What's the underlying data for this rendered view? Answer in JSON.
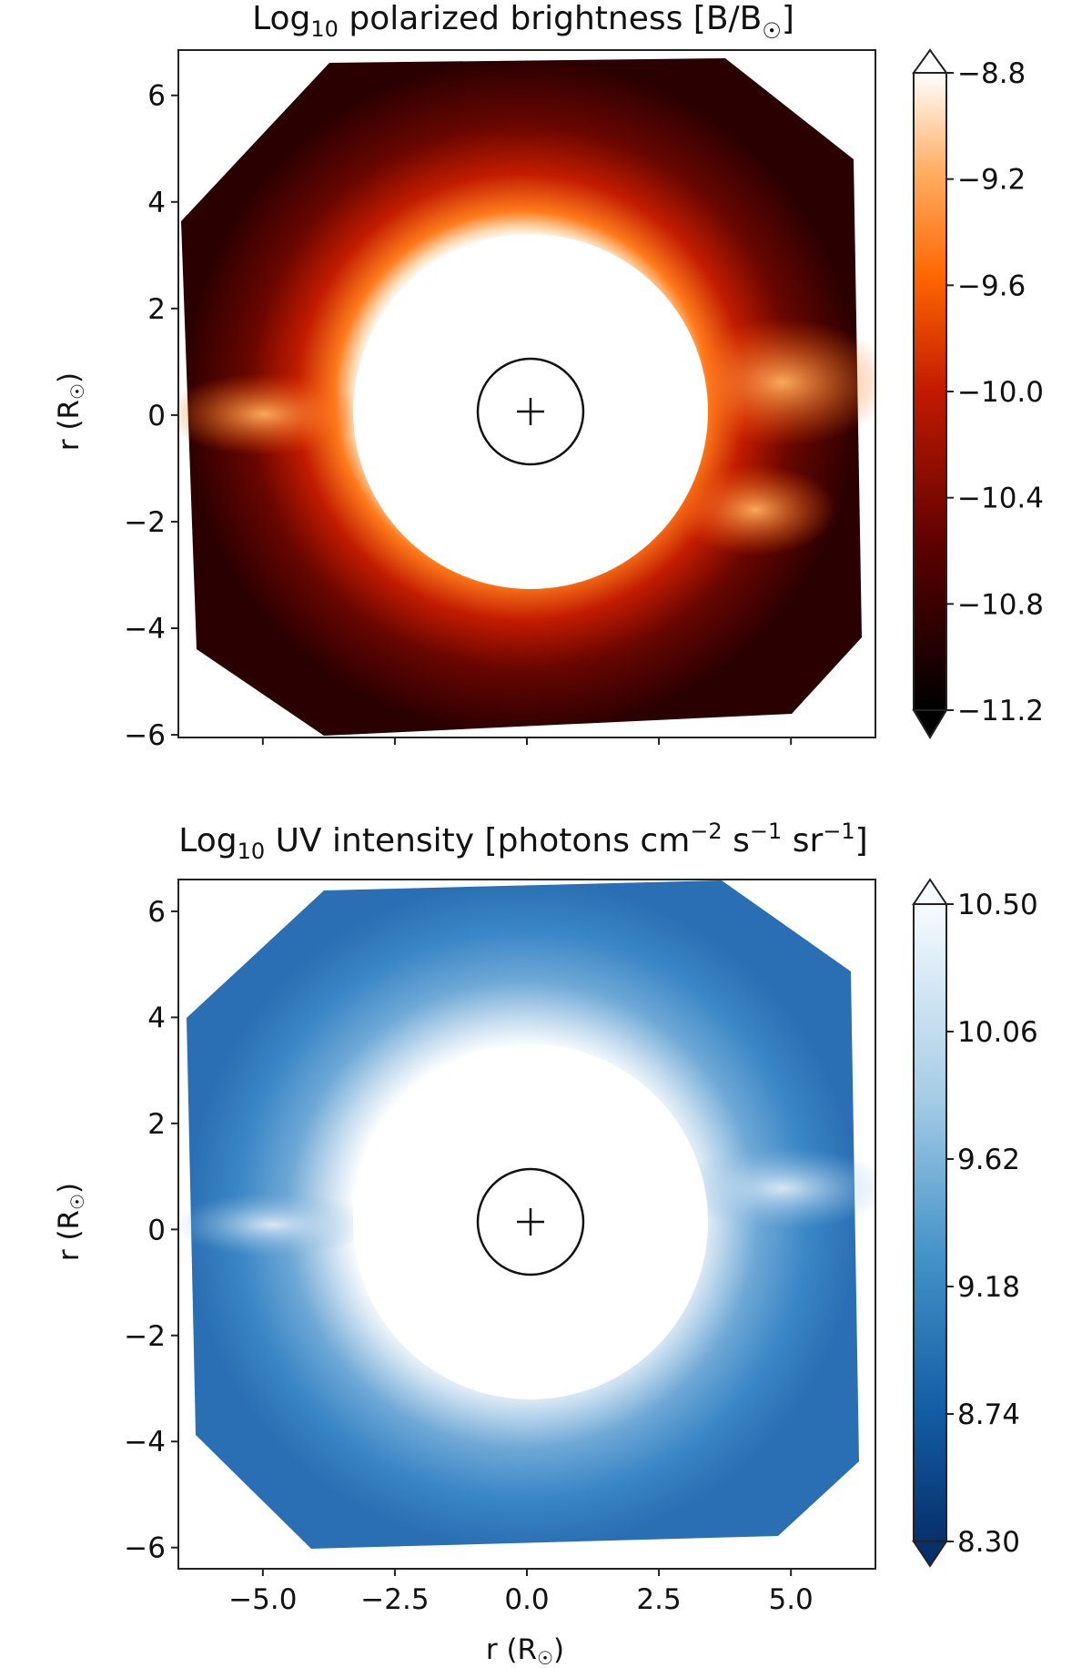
{
  "chart_data": [
    {
      "type": "heatmap",
      "title": {
        "prefix": "Log",
        "sub": "10",
        "text": " polarized brightness [B/B",
        "sun_symbol": "☉",
        "suffix": "]"
      },
      "ylabel": {
        "prefix": "r (R",
        "sun_symbol": "☉",
        "suffix": ")"
      },
      "xlim": [
        -6.6,
        6.6
      ],
      "ylim": [
        -6.05,
        6.85
      ],
      "x_ticks": [
        -5.0,
        -2.5,
        0.0,
        2.5,
        5.0
      ],
      "x_tick_labels_shown": false,
      "y_ticks": [
        6,
        4,
        2,
        0,
        -2,
        -4,
        -6
      ],
      "y_tick_labels": [
        "6",
        "4",
        "2",
        "0",
        "−2",
        "−4",
        "−6"
      ],
      "occulter_radius": 3.35,
      "sun_disk_radius": 1.0,
      "colorbar": {
        "colormap": "gist_heat",
        "range": [
          -11.2,
          -8.8
        ],
        "ticks": [
          -8.8,
          -9.2,
          -9.6,
          -10.0,
          -10.4,
          -10.8,
          -11.2
        ],
        "tick_labels": [
          "−8.8",
          "−9.2",
          "−9.6",
          "−10.0",
          "−10.4",
          "−10.8",
          "−11.2"
        ],
        "extend": "both"
      },
      "colors": {
        "bright": "#ffffff",
        "mid": "#ff6a00",
        "dark": "#2a0000"
      }
    },
    {
      "type": "heatmap",
      "title": {
        "prefix": "Log",
        "sub": "10",
        "text": " UV intensity [photons cm",
        "sup1": "−2",
        "mid1": " s",
        "sup2": "−1",
        "mid2": " sr",
        "sup3": "−1",
        "suffix": "]"
      },
      "xlabel": {
        "prefix": "r (R",
        "sun_symbol": "☉",
        "suffix": ")"
      },
      "ylabel": {
        "prefix": "r (R",
        "sun_symbol": "☉",
        "suffix": ")"
      },
      "xlim": [
        -6.6,
        6.6
      ],
      "ylim": [
        -6.4,
        6.6
      ],
      "x_ticks": [
        -5.0,
        -2.5,
        0.0,
        2.5,
        5.0
      ],
      "x_tick_labels": [
        "−5.0",
        "−2.5",
        "0.0",
        "2.5",
        "5.0"
      ],
      "y_ticks": [
        6,
        4,
        2,
        0,
        -2,
        -4,
        -6
      ],
      "y_tick_labels": [
        "6",
        "4",
        "2",
        "0",
        "−2",
        "−4",
        "−6"
      ],
      "occulter_radius": 3.35,
      "sun_disk_radius": 1.0,
      "colorbar": {
        "colormap": "Blues_r",
        "range": [
          8.3,
          10.5
        ],
        "ticks": [
          10.5,
          10.06,
          9.62,
          9.18,
          8.74,
          8.3
        ],
        "tick_labels": [
          "10.50",
          "10.06",
          "9.62",
          "9.18",
          "8.74",
          "8.30"
        ],
        "extend": "both"
      },
      "colors": {
        "bright": "#ffffff",
        "mid": "#3a86c6",
        "dark": "#0b3b7a"
      }
    }
  ]
}
